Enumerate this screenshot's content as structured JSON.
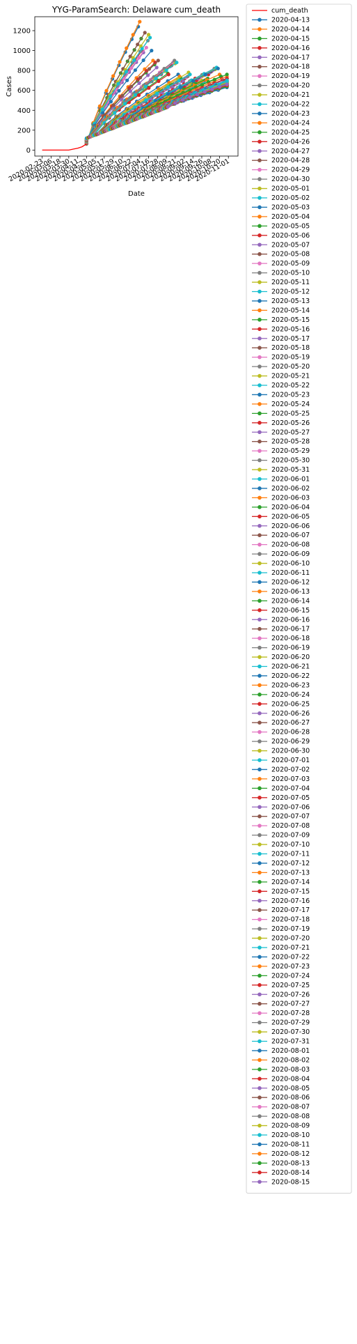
{
  "chart_data": {
    "type": "line",
    "title": "YYG-ParamSearch: Delaware cum_death",
    "xlabel": "Date",
    "ylabel": "Cases",
    "ylim": [
      -60,
      1340
    ],
    "yticks": [
      0,
      200,
      400,
      600,
      800,
      1000,
      1200
    ],
    "xlim": [
      "2020-02-13",
      "2020-11-14"
    ],
    "xticks": [
      "2020-02-23",
      "2020-03-06",
      "2020-03-18",
      "2020-03-30",
      "2020-04-11",
      "2020-04-23",
      "2020-05-05",
      "2020-05-17",
      "2020-05-29",
      "2020-06-10",
      "2020-06-22",
      "2020-07-04",
      "2020-07-16",
      "2020-07-28",
      "2020-08-09",
      "2020-08-21",
      "2020-09-02",
      "2020-09-14",
      "2020-09-26",
      "2020-10-08",
      "2020-10-20",
      "2020-11-01"
    ],
    "grid": false,
    "legend_placement": "outside-right",
    "observed": {
      "name": "cum_death",
      "color": "#ff0000",
      "dates": [
        "2020-02-23",
        "2020-03-06",
        "2020-03-18",
        "2020-03-30",
        "2020-04-05",
        "2020-04-11",
        "2020-04-17",
        "2020-04-23"
      ],
      "values": [
        0,
        0,
        0,
        0,
        10,
        19,
        34,
        62
      ]
    },
    "forecast_dates": [
      "2020-04-13",
      "2020-04-14",
      "2020-04-15",
      "2020-04-16",
      "2020-04-17",
      "2020-04-18",
      "2020-04-19",
      "2020-04-20",
      "2020-04-21",
      "2020-04-22",
      "2020-04-23",
      "2020-04-24",
      "2020-04-25",
      "2020-04-26",
      "2020-04-27",
      "2020-04-28",
      "2020-04-29",
      "2020-04-30",
      "2020-05-01",
      "2020-05-02",
      "2020-05-03",
      "2020-05-04",
      "2020-05-05",
      "2020-05-06",
      "2020-05-07",
      "2020-05-08",
      "2020-05-09",
      "2020-05-10",
      "2020-05-11",
      "2020-05-12",
      "2020-05-13",
      "2020-05-14",
      "2020-05-15",
      "2020-05-16",
      "2020-05-17",
      "2020-05-18",
      "2020-05-19",
      "2020-05-20",
      "2020-05-21",
      "2020-05-22",
      "2020-05-23",
      "2020-05-24",
      "2020-05-25",
      "2020-05-26",
      "2020-05-27",
      "2020-05-28",
      "2020-05-29",
      "2020-05-30",
      "2020-05-31",
      "2020-06-01",
      "2020-06-02",
      "2020-06-03",
      "2020-06-04",
      "2020-06-05",
      "2020-06-06",
      "2020-06-07",
      "2020-06-08",
      "2020-06-09",
      "2020-06-10",
      "2020-06-11",
      "2020-06-12",
      "2020-06-13",
      "2020-06-14",
      "2020-06-15",
      "2020-06-16",
      "2020-06-17",
      "2020-06-18",
      "2020-06-19",
      "2020-06-20",
      "2020-06-21",
      "2020-06-22",
      "2020-06-23",
      "2020-06-24",
      "2020-06-25",
      "2020-06-26",
      "2020-06-27",
      "2020-06-28",
      "2020-06-29",
      "2020-06-30",
      "2020-07-01",
      "2020-07-02",
      "2020-07-03",
      "2020-07-04",
      "2020-07-05",
      "2020-07-06",
      "2020-07-07",
      "2020-07-08",
      "2020-07-09",
      "2020-07-10",
      "2020-07-11",
      "2020-07-12",
      "2020-07-13",
      "2020-07-14",
      "2020-07-15",
      "2020-07-16",
      "2020-07-17",
      "2020-07-18",
      "2020-07-19",
      "2020-07-20",
      "2020-07-21",
      "2020-07-22",
      "2020-07-23",
      "2020-07-24",
      "2020-07-25",
      "2020-07-26",
      "2020-07-27",
      "2020-07-28",
      "2020-07-29",
      "2020-07-30",
      "2020-07-31",
      "2020-08-01",
      "2020-08-02",
      "2020-08-03",
      "2020-08-04",
      "2020-08-05",
      "2020-08-06",
      "2020-08-07",
      "2020-08-08",
      "2020-08-09",
      "2020-08-10",
      "2020-08-11",
      "2020-08-12",
      "2020-08-13",
      "2020-08-14",
      "2020-08-15"
    ],
    "forecast_end_values": [
      1240,
      1290,
      1120,
      1000,
      980,
      1180,
      1030,
      1100,
      1160,
      1130,
      1000,
      900,
      860,
      880,
      830,
      900,
      780,
      760,
      790,
      800,
      810,
      820,
      770,
      760,
      840,
      850,
      880,
      900,
      870,
      880,
      760,
      740,
      720,
      700,
      690,
      720,
      730,
      740,
      780,
      760,
      700,
      690,
      680,
      720,
      680,
      670,
      690,
      670,
      700,
      680,
      700,
      710,
      720,
      760,
      780,
      790,
      800,
      820,
      810,
      830,
      820,
      760,
      740,
      720,
      700,
      690,
      680,
      720,
      700,
      690,
      720,
      740,
      760,
      720,
      700,
      690,
      680,
      670,
      660,
      670,
      680,
      660,
      650,
      670,
      660,
      650,
      660,
      690,
      680,
      700,
      690,
      670,
      660,
      650,
      640,
      660,
      650,
      660,
      650,
      640,
      650,
      660,
      670,
      680,
      660,
      650,
      640,
      650,
      650,
      640,
      630,
      660,
      650,
      660,
      640,
      650,
      660,
      670,
      680,
      690,
      660,
      650,
      640,
      650,
      660
    ],
    "palette": [
      "#1f77b4",
      "#ff7f0e",
      "#2ca02c",
      "#d62728",
      "#9467bd",
      "#8c564b",
      "#e377c2",
      "#7f7f7f",
      "#bcbd22",
      "#17becf"
    ]
  }
}
